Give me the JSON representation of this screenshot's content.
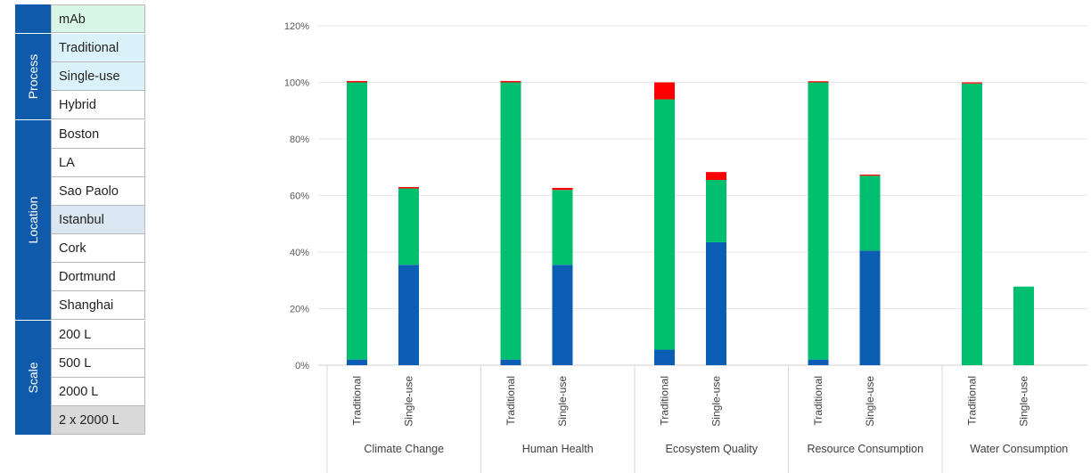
{
  "slicer": {
    "groups": [
      {
        "label": "",
        "items": [
          {
            "text": "mAb",
            "state": "mint"
          }
        ]
      },
      {
        "label": "Process",
        "items": [
          {
            "text": "Traditional",
            "state": "blue"
          },
          {
            "text": "Single-use",
            "state": "blue"
          },
          {
            "text": "Hybrid",
            "state": "none"
          }
        ]
      },
      {
        "label": "Location",
        "items": [
          {
            "text": "Boston",
            "state": "none"
          },
          {
            "text": "LA",
            "state": "none"
          },
          {
            "text": "Sao Paolo",
            "state": "none"
          },
          {
            "text": "Istanbul",
            "state": "pale"
          },
          {
            "text": "Cork",
            "state": "none"
          },
          {
            "text": "Dortmund",
            "state": "none"
          },
          {
            "text": "Shanghai",
            "state": "none"
          }
        ]
      },
      {
        "label": "Scale",
        "items": [
          {
            "text": "200 L",
            "state": "none"
          },
          {
            "text": "500 L",
            "state": "none"
          },
          {
            "text": "2000 L",
            "state": "none"
          },
          {
            "text": "2 x 2000 L",
            "state": "grey"
          }
        ]
      }
    ],
    "state_colors": {
      "mint": "#d8f7e7",
      "blue": "#dcf2fb",
      "pale": "#dbe6f3",
      "grey": "#d9d9d9",
      "none": "#ffffff"
    }
  },
  "chart_data": {
    "type": "bar",
    "stacked": true,
    "y_tick_labels": [
      "0%",
      "20%",
      "40%",
      "60%",
      "80%",
      "100%",
      "120%"
    ],
    "ylim": [
      0,
      120
    ],
    "grid": true,
    "groups": [
      {
        "name": "Climate Change",
        "bars": [
          {
            "label": "Traditional",
            "values": [
              2,
              98,
              0.5
            ]
          },
          {
            "label": "Single-use",
            "values": [
              35.5,
              27,
              0.5
            ]
          }
        ]
      },
      {
        "name": "Human Health",
        "bars": [
          {
            "label": "Traditional",
            "values": [
              2,
              98,
              0.5
            ]
          },
          {
            "label": "Single-use",
            "values": [
              35.5,
              26.5,
              0.7
            ]
          }
        ]
      },
      {
        "name": "Ecosystem Quality",
        "bars": [
          {
            "label": "Traditional",
            "values": [
              5.5,
              88.5,
              6
            ]
          },
          {
            "label": "Single-use",
            "values": [
              43.5,
              22,
              2.8
            ]
          }
        ]
      },
      {
        "name": "Resource Consumption",
        "bars": [
          {
            "label": "Traditional",
            "values": [
              2,
              98,
              0.4
            ]
          },
          {
            "label": "Single-use",
            "values": [
              40.5,
              26.5,
              0.4
            ]
          }
        ]
      },
      {
        "name": "Water Consumption",
        "bars": [
          {
            "label": "Traditional",
            "values": [
              0,
              99.6,
              0.4
            ]
          },
          {
            "label": "Single-use",
            "values": [
              0,
              27.8,
              0
            ]
          }
        ]
      }
    ],
    "series_colors": [
      "#0c5eb5",
      "#00bf6f",
      "#ff0000"
    ]
  }
}
